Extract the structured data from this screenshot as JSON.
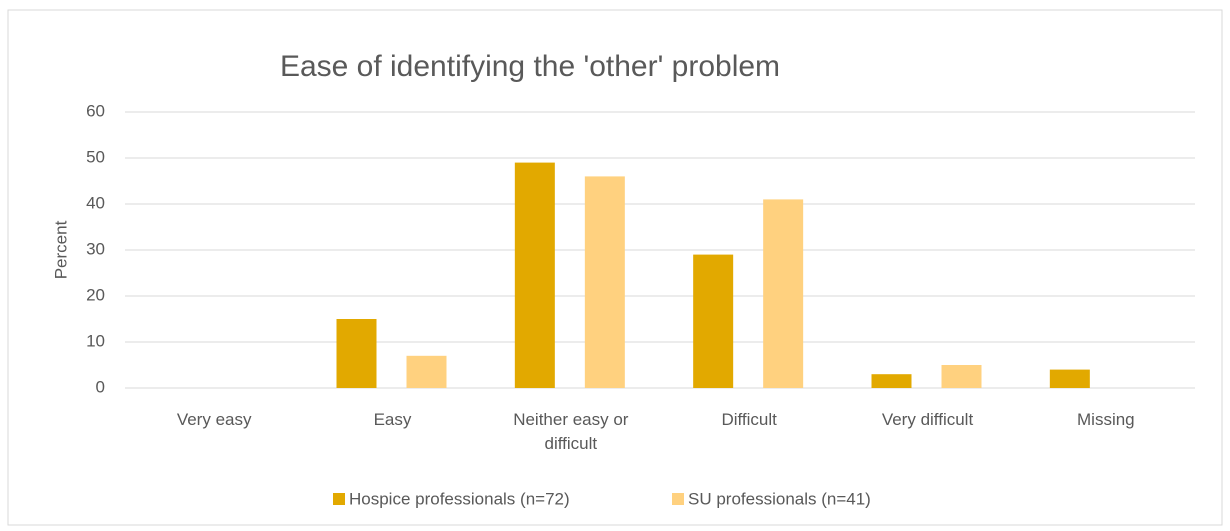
{
  "chart_data": {
    "type": "bar",
    "title": "Ease of identifying the 'other' problem",
    "y_label": "Percent",
    "categories": [
      "Very easy",
      "Easy",
      "Neither easy or difficult",
      "Difficult",
      "Very difficult",
      "Missing"
    ],
    "series": [
      {
        "name": "Hospice professionals (n=72)",
        "color": "#e2a900",
        "values": [
          0,
          15,
          49,
          29,
          3,
          4
        ]
      },
      {
        "name": "SU professionals (n=41)",
        "color": "#ffd17f",
        "values": [
          0,
          7,
          46,
          41,
          5,
          0
        ]
      }
    ],
    "ylim": [
      0,
      60
    ],
    "yticks": [
      0,
      10,
      20,
      30,
      40,
      50,
      60
    ],
    "grid": true,
    "legend": "bottom"
  }
}
